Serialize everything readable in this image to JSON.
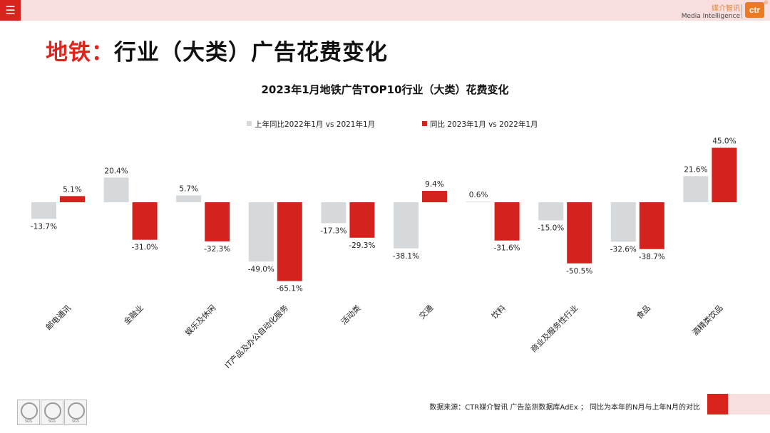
{
  "header": {
    "menu_icon": "hamburger-icon",
    "brand_cn": "媒介智讯",
    "brand_en": "Media Intelligence",
    "logo_text": "ctr",
    "logo_mark": "®"
  },
  "title": {
    "prefix": "地铁：",
    "main": "行业（大类）广告花费变化"
  },
  "colors": {
    "series_prev": "#d5d9dc",
    "series_curr": "#d4231e",
    "accent": "#e1231b"
  },
  "chart_data": {
    "type": "bar",
    "title": "2023年1月地铁广告TOP10行业（大类）花费变化",
    "categories": [
      "邮电通讯",
      "金融业",
      "娱乐及休闲",
      "IT产品及办公自动化服务",
      "活动类",
      "交通",
      "饮料",
      "商业及服务性行业",
      "食品",
      "酒精类饮品"
    ],
    "series": [
      {
        "name": "上年同比2022年1月  vs  2021年1月",
        "values": [
          -13.7,
          20.4,
          5.7,
          -49.0,
          -17.3,
          -38.1,
          0.6,
          -15.0,
          -32.6,
          21.6
        ]
      },
      {
        "name": "同比 2023年1月  vs  2022年1月",
        "values": [
          5.1,
          -31.0,
          -32.3,
          -65.1,
          -29.3,
          9.4,
          -31.6,
          -50.5,
          -38.7,
          45.0
        ]
      }
    ],
    "value_suffix": "%",
    "ylim": [
      -70,
      50
    ],
    "xlabel": "",
    "ylabel": "",
    "grid": false,
    "legend_position": "top"
  },
  "footer": {
    "source": "数据来源：CTR媒介智讯 广告监测数据库AdEx ；  同比为本年的N月与上年N月的对比",
    "seal_label": "SGS"
  }
}
